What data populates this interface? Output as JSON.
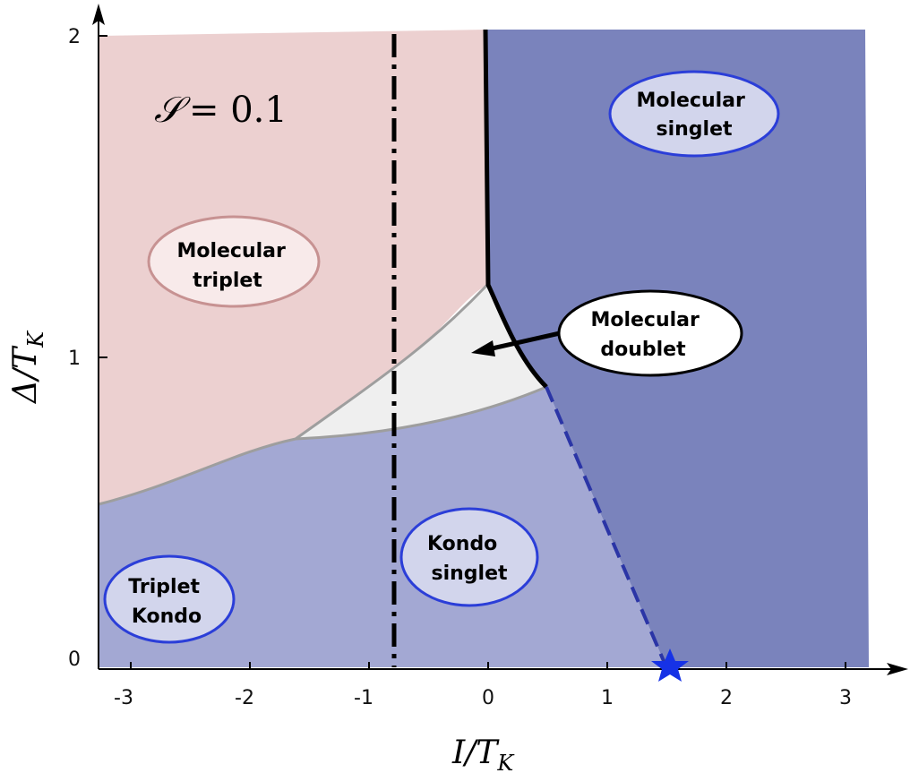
{
  "colors": {
    "molecular_triplet": "#ecd0d0",
    "kondo_singlet": "#a3a8d3",
    "molecular_singlet": "#7a83bc",
    "molecular_doublet": "#efefef",
    "star": "#1632e6",
    "axis": "#000000"
  },
  "parameter": {
    "symbol": "𝒮",
    "value": "= 0.1"
  },
  "axes": {
    "xlabel_main": "I/T",
    "xlabel_sub": "K",
    "ylabel_main": "Δ/T",
    "ylabel_sub": "K",
    "xticks": [
      "-3",
      "-2",
      "-1",
      "0",
      "1",
      "2",
      "3"
    ],
    "yticks": [
      "0",
      "1",
      "2"
    ]
  },
  "regions": {
    "molecular_singlet": {
      "line1": "Molecular",
      "line2": "singlet"
    },
    "molecular_triplet": {
      "line1": "Molecular",
      "line2": "triplet"
    },
    "molecular_doublet": {
      "line1": "Molecular",
      "line2": "doublet"
    },
    "kondo_singlet": {
      "line1": "Kondo",
      "line2": "singlet"
    },
    "triplet_kondo": {
      "line1": "Triplet",
      "line2": "Kondo"
    }
  },
  "markers": {
    "star_icon": "star-icon",
    "star_x": 1.5,
    "star_y": 0,
    "dashdot_line_x": -0.78
  }
}
